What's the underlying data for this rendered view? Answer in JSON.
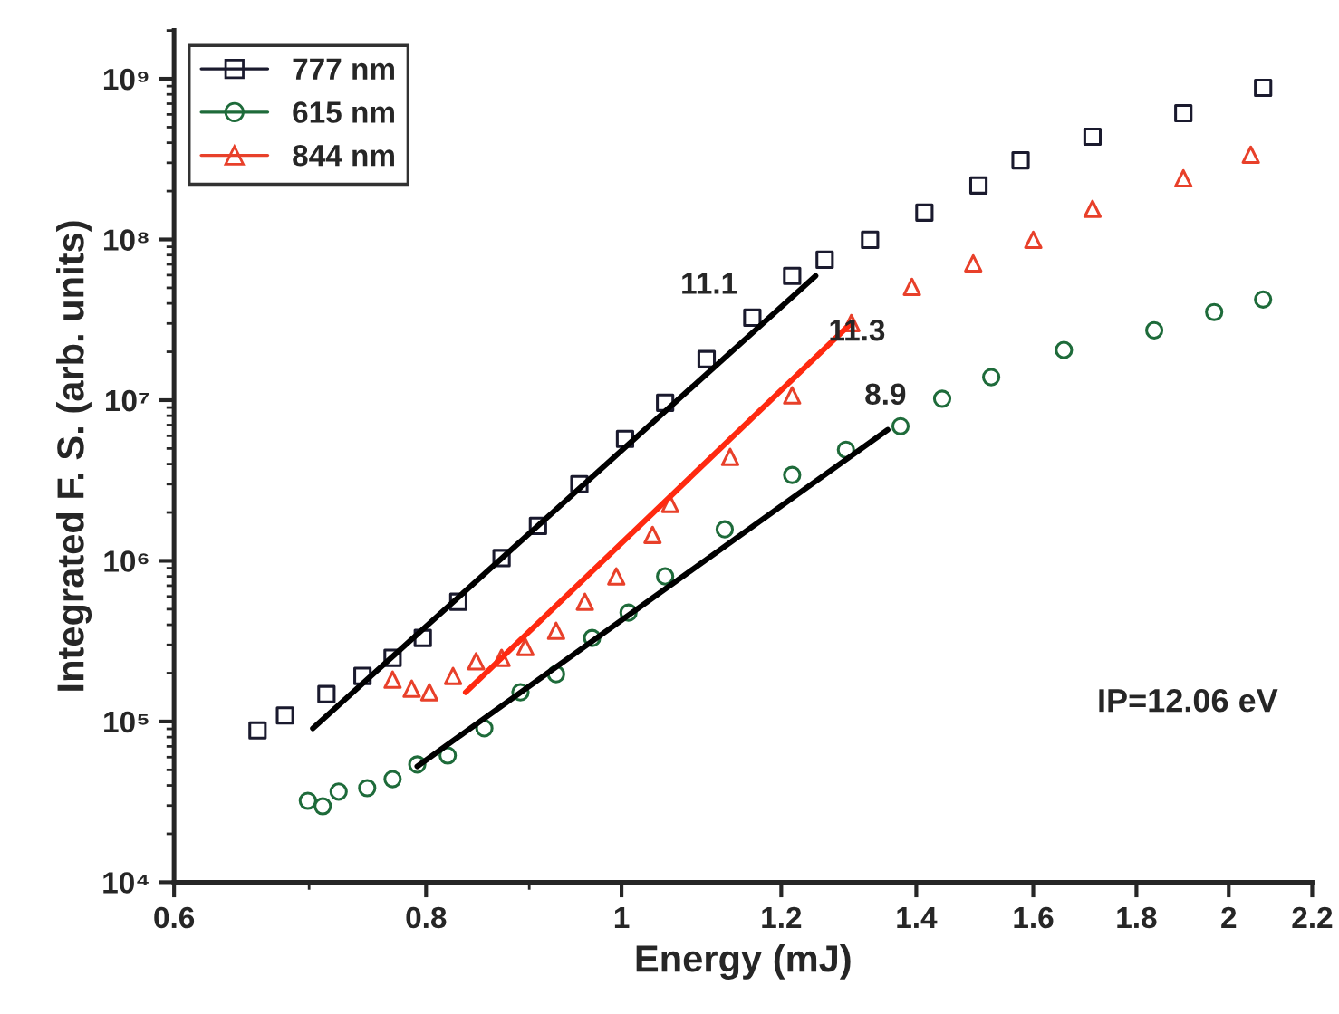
{
  "chart_data": {
    "type": "scatter",
    "xlabel": "Energy (mJ)",
    "ylabel": "Integrated F. S. (arb. units)",
    "log": "xy",
    "xlim": [
      0.6,
      2.2
    ],
    "ylim": [
      10000,
      2000000000
    ],
    "xticks": [
      0.6,
      0.8,
      1,
      1.2,
      1.4,
      1.6,
      1.8,
      2,
      2.2
    ],
    "yticks": [
      {
        "value": 10000,
        "label": "10⁴"
      },
      {
        "value": 100000,
        "label": "10⁵"
      },
      {
        "value": 1000000,
        "label": "10⁶"
      },
      {
        "value": 10000000,
        "label": "10⁷"
      },
      {
        "value": 100000000,
        "label": "10⁸"
      },
      {
        "value": 1000000000,
        "label": "10⁹"
      }
    ],
    "grid": false,
    "legend": "top left",
    "series": [
      {
        "name": "777 nm",
        "marker": "square",
        "color": "#1a1a2e",
        "x": [
          0.66,
          0.681,
          0.714,
          0.744,
          0.77,
          0.797,
          0.83,
          0.872,
          0.909,
          0.953,
          1.004,
          1.051,
          1.102,
          1.161,
          1.215,
          1.261,
          1.328,
          1.413,
          1.503,
          1.577,
          1.712,
          1.899,
          2.08
        ],
        "values": [
          88000,
          109000,
          148000,
          192000,
          249000,
          331000,
          556000,
          1040000,
          1650000,
          3000000,
          5740000,
          9640000,
          18000000,
          32600000,
          59300000,
          74800000,
          99500000,
          147000000,
          217000000,
          311000000,
          436000000,
          611000000,
          879000000
        ]
      },
      {
        "name": "615 nm",
        "marker": "circle",
        "color": "#1e6b3a",
        "x": [
          0.699,
          0.711,
          0.724,
          0.748,
          0.77,
          0.792,
          0.82,
          0.855,
          0.891,
          0.928,
          0.967,
          1.008,
          1.051,
          1.125,
          1.215,
          1.292,
          1.375,
          1.442,
          1.525,
          1.657,
          1.837,
          1.967,
          2.08
        ],
        "values": [
          32100,
          29700,
          36600,
          38500,
          43800,
          54000,
          61400,
          90700,
          152000,
          197000,
          331000,
          476000,
          800000,
          1570000,
          3420000,
          4910000,
          6880000,
          10200000,
          13900000,
          20500000,
          27200000,
          35300000,
          42300000
        ]
      },
      {
        "name": "844 nm",
        "marker": "triangle",
        "color": "#e8402a",
        "x": [
          0.77,
          0.787,
          0.803,
          0.825,
          0.847,
          0.872,
          0.896,
          0.928,
          0.959,
          0.994,
          1.036,
          1.057,
          1.132,
          1.215,
          1.3,
          1.393,
          1.494,
          1.6,
          1.712,
          1.899,
          2.051
        ],
        "values": [
          182000,
          160000,
          152000,
          192000,
          237000,
          249000,
          291000,
          367000,
          556000,
          800000,
          1450000,
          2260000,
          4430000,
          10700000,
          30200000,
          50700000,
          71000000,
          99500000,
          155000000,
          240000000,
          337000000
        ]
      },
      {
        "type": "line",
        "marker": "none",
        "line_style": "solid",
        "color": "#000000",
        "x": [
          0.703,
          1.248
        ],
        "values": [
          90700,
          59300000
        ]
      },
      {
        "type": "line",
        "marker": "none",
        "line_style": "solid",
        "color": "#ff2a10",
        "x": [
          0.837,
          1.3
        ],
        "values": [
          152000,
          30200000
        ]
      },
      {
        "type": "line",
        "marker": "none",
        "line_style": "solid",
        "color": "#000000",
        "x": [
          0.792,
          1.355
        ],
        "values": [
          52600,
          6540000
        ]
      }
    ],
    "annotations": [
      "11.1",
      "11.3",
      "8.9",
      "IP=12.06 eV"
    ]
  }
}
